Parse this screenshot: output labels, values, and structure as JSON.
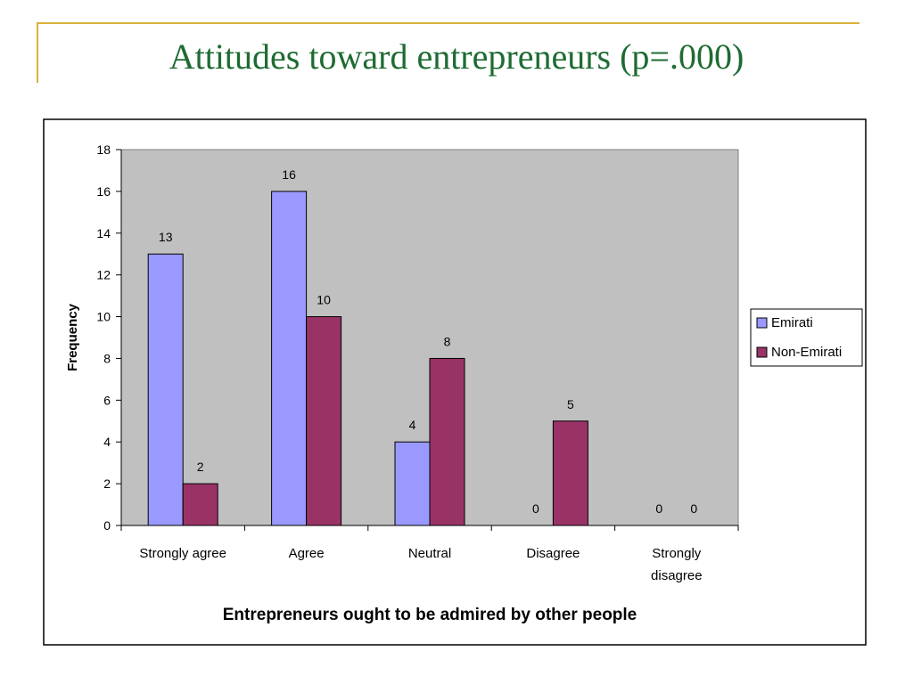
{
  "slide": {
    "title": "Attitudes toward entrepreneurs (p=.000)"
  },
  "colors": {
    "accent": "#d9b23c",
    "title": "#1e6b32",
    "plot_bg": "#c0c0c0",
    "emirati": "#9999ff",
    "non_emirati": "#993366"
  },
  "chart_data": {
    "type": "bar",
    "title": "",
    "xlabel": "Entrepreneurs ought to be admired by other people",
    "ylabel": "Frequency",
    "ylim": [
      0,
      18
    ],
    "yticks": [
      0,
      2,
      4,
      6,
      8,
      10,
      12,
      14,
      16,
      18
    ],
    "categories": [
      "Strongly agree",
      "Agree",
      "Neutral",
      "Disagree",
      "Strongly disagree"
    ],
    "category_lines": [
      [
        "Strongly agree"
      ],
      [
        "Agree"
      ],
      [
        "Neutral"
      ],
      [
        "Disagree"
      ],
      [
        "Strongly",
        "disagree"
      ]
    ],
    "series": [
      {
        "name": "Emirati",
        "values": [
          13,
          16,
          4,
          0,
          0
        ],
        "color": "#9999ff"
      },
      {
        "name": "Non-Emirati",
        "values": [
          2,
          10,
          8,
          5,
          0
        ],
        "color": "#993366"
      }
    ],
    "grid": false,
    "legend": "right",
    "data_labels": true
  }
}
